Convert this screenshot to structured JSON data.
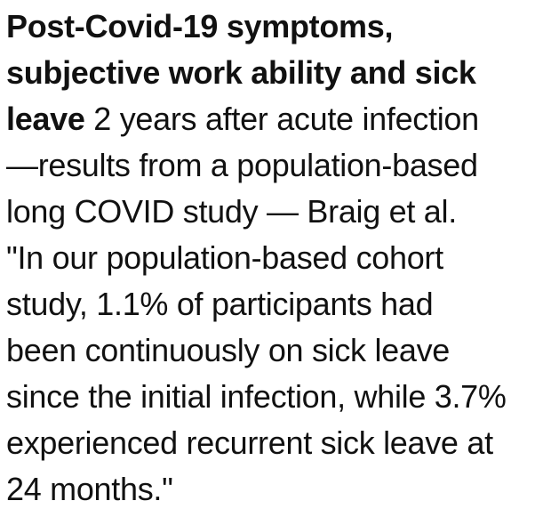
{
  "page": {
    "background_color": "#ffffff",
    "text_color": "#111111"
  },
  "article": {
    "title_bold": "Post-Covid-19 symptoms, subjective work ability and sick leave",
    "title_regular": "2 years after acute infection —results from a population-based long COVID study — Braig et al.",
    "quote": "\"In our population-based cohort study, 1.1% of participants had been continuously on sick leave since the initial infection, while 3.7% experienced recurrent sick leave at 24 months.\"",
    "stats": {
      "continuous_sick_leave_pct": "1.1%",
      "recurrent_sick_leave_pct": "3.7%",
      "followup": "24 months"
    },
    "lines": [
      {
        "bold": "Post-Covid-19 symptoms,"
      },
      {
        "bold": "subjective work ability and sick"
      },
      {
        "bold": "leave",
        "text": " 2 years after acute infection"
      },
      {
        "text": "—results from a population-based"
      },
      {
        "text": "long COVID study — Braig et al."
      },
      {
        "text": "\"In our population-based cohort"
      },
      {
        "text": "study, 1.1% of participants had"
      },
      {
        "text": "been continuously on sick leave"
      },
      {
        "text": "since the initial infection, while 3.7%"
      },
      {
        "text": "experienced recurrent sick leave at"
      },
      {
        "text": "24 months.\""
      }
    ]
  }
}
